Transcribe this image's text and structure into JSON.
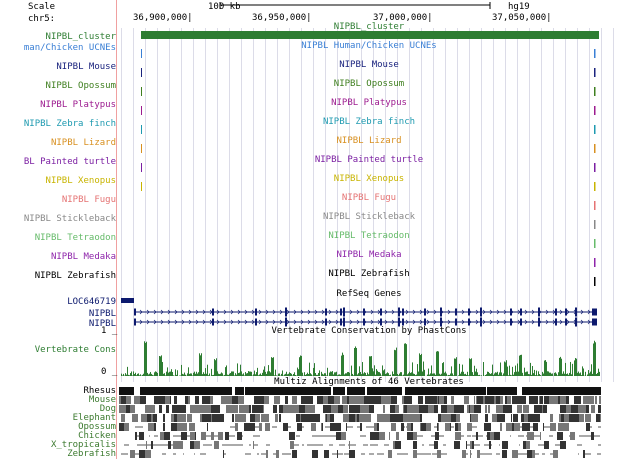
{
  "ruler": {
    "scale_label": "Scale",
    "chrom_label": "chr5:",
    "scale_bar_text": "100 kb",
    "assembly": "hg19",
    "positions": [
      "36,900,000|",
      "36,950,000|",
      "37,000,000|",
      "37,050,000|"
    ]
  },
  "tracks": [
    {
      "label": "NIPBL_cluster",
      "title": "NIPBL_cluster",
      "color": "#2e7d32"
    },
    {
      "label": "man/Chicken UCNEs",
      "title": "NIPBL Human/Chicken UCNEs",
      "color": "#3a7fd5"
    },
    {
      "label": "NIPBL Mouse",
      "title": "NIPBL Mouse",
      "color": "#1a237e"
    },
    {
      "label": "NIPBL Opossum",
      "title": "NIPBL Opossum",
      "color": "#3f7f1f"
    },
    {
      "label": "NIPBL Platypus",
      "title": "NIPBL Platypus",
      "color": "#9c1b8f"
    },
    {
      "label": "NIPBL Zebra finch",
      "title": "NIPBL Zebra finch",
      "color": "#1e9ab0"
    },
    {
      "label": "NIPBL Lizard",
      "title": "NIPBL Lizard",
      "color": "#d89020"
    },
    {
      "label": "BL Painted turtle",
      "title": "NIPBL Painted turtle",
      "color": "#7b1fa2"
    },
    {
      "label": "NIPBL Xenopus",
      "title": "NIPBL Xenopus",
      "color": "#c8b400"
    },
    {
      "label": "NIPBL Fugu",
      "title": "NIPBL Fugu",
      "color": "#e57373"
    },
    {
      "label": "NIPBL Stickleback",
      "title": "NIPBL Stickleback",
      "color": "#888888"
    },
    {
      "label": "NIPBL Tetraodon",
      "title": "NIPBL Tetraodon",
      "color": "#66bb6a"
    },
    {
      "label": "NIPBL Medaka",
      "title": "NIPBL Medaka",
      "color": "#8e24aa"
    },
    {
      "label": "NIPBL Zebrafish",
      "title": "NIPBL Zebrafish",
      "color": "#000000"
    }
  ],
  "genes": {
    "title": "RefSeq Genes",
    "loc_label": "LOC646719",
    "gene_labels": [
      "NIPBL",
      "NIPBL"
    ],
    "color": "#0d1a6e"
  },
  "conservation": {
    "title": "Vertebrate Conservation by PhastCons",
    "label": "Vertebrate Cons",
    "y_top": "1 _",
    "y_bottom": "0 _",
    "color": "#2e7d32"
  },
  "multiz": {
    "title": "Multiz Alignments of 46 Vertebrates",
    "species": [
      "Rhesus",
      "Mouse",
      "Dog",
      "Elephant",
      "Opossum",
      "Chicken",
      "X_tropicalis",
      "Zebrafish"
    ],
    "color": "#3c7a2f"
  }
}
